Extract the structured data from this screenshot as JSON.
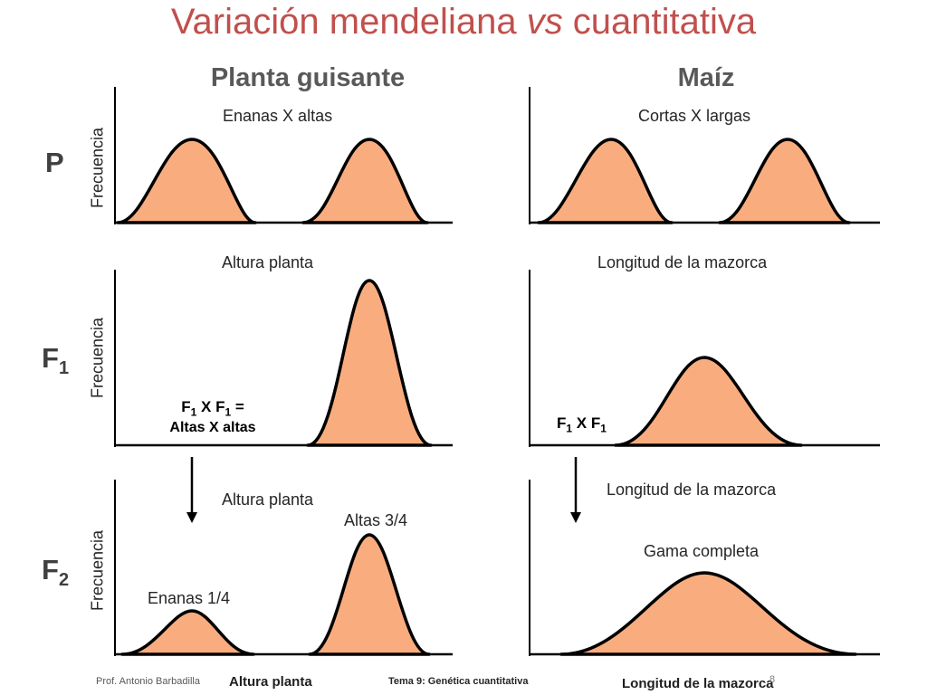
{
  "title": {
    "before": "Variación mendeliana ",
    "em": "vs",
    "after": " cuantitativa"
  },
  "columns": {
    "left": "Planta guisante",
    "right": "Maíz"
  },
  "generations": {
    "p": "P",
    "f1_base": "F",
    "f1_sub": "1",
    "f2_base": "F",
    "f2_sub": "2"
  },
  "axis_label": "Frecuencia",
  "left": {
    "p_label": "Enanas X altas",
    "f1_label": "Altura planta",
    "cross_f": "F",
    "cross_sub": "1",
    "cross_x": " X ",
    "cross_eq": " =",
    "cross_desc": "Altas X altas",
    "f2_label": "Altura planta",
    "f2_tall": "Altas 3/4",
    "f2_dwarf": "Enanas 1/4",
    "bottom_label": "Altura planta"
  },
  "right": {
    "p_label": "Cortas X largas",
    "f1_label": "Longitud de la mazorca",
    "cross_f": "F",
    "cross_sub": "1",
    "cross_x": " X ",
    "f2_label": "Longitud de la mazorca",
    "f2_range": "Gama completa",
    "bottom_label": "Longitud de la mazorca"
  },
  "footer": {
    "author": "Prof. Antonio Barbadilla",
    "topic": "Tema 9: Genética cuantitativa",
    "page": "8"
  },
  "colors": {
    "title": "#c0504d",
    "fill": "#f9ad7f",
    "stroke": "#000000"
  }
}
